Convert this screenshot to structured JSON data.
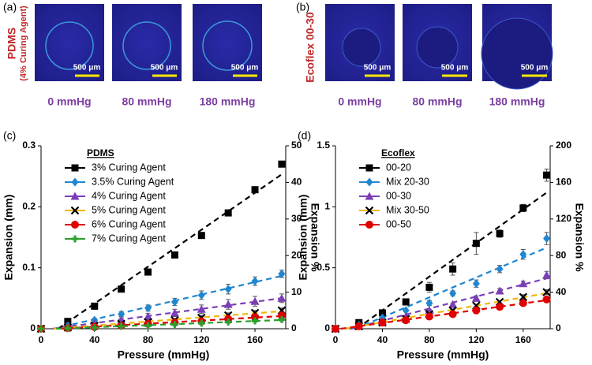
{
  "panel_a": {
    "label": "(a)",
    "sample": "PDMS",
    "sample_note": "(4% Curing Agent)",
    "scale_bar": "500 μm",
    "pressures": [
      "0 mmHg",
      "80 mmHg",
      "180 mmHg"
    ]
  },
  "panel_b": {
    "label": "(b)",
    "sample": "Ecoflex 00-30",
    "scale_bar": "500 μm",
    "pressures": [
      "0 mmHg",
      "80 mmHg",
      "180 mmHg"
    ]
  },
  "chart_data": [
    {
      "type": "scatter",
      "label": "(c)",
      "legend_title": "PDMS",
      "x_label": "Pressure (mmHg)",
      "y_label": "Expansion (mm)",
      "y2_label": "Expansion %",
      "x": [
        0,
        20,
        40,
        60,
        80,
        100,
        120,
        140,
        160,
        180
      ],
      "xlim": [
        0,
        183
      ],
      "xticks": [
        0,
        40,
        80,
        120,
        160
      ],
      "ylim": [
        0,
        0.3
      ],
      "yticks": [
        0,
        0.1,
        0.2,
        0.3
      ],
      "y2lim": [
        0,
        50
      ],
      "y2ticks": [
        0,
        10,
        20,
        30,
        40,
        50
      ],
      "fit_lines": true,
      "series": [
        {
          "name": "3% Curing Agent",
          "color": "#000000",
          "marker": "square",
          "values": [
            0,
            0.012,
            0.037,
            0.065,
            0.093,
            0.121,
            0.153,
            0.19,
            0.228,
            0.27
          ],
          "errors": [
            0,
            0.002,
            0.003,
            0.004,
            0.005,
            0.003,
            0.003,
            0.003,
            0.002,
            0.003
          ]
        },
        {
          "name": "3.5% Curing Agent",
          "color": "#1f86d0",
          "marker": "diamond",
          "values": [
            0,
            0.005,
            0.014,
            0.024,
            0.034,
            0.044,
            0.055,
            0.065,
            0.078,
            0.09
          ],
          "errors": [
            0,
            0.002,
            0.003,
            0.004,
            0.005,
            0.006,
            0.007,
            0.008,
            0.007,
            0.006
          ]
        },
        {
          "name": "4% Curing Agent",
          "color": "#7b3fb5",
          "marker": "triangle",
          "values": [
            0,
            0.003,
            0.008,
            0.014,
            0.02,
            0.026,
            0.032,
            0.04,
            0.045,
            0.05
          ],
          "errors": [
            0,
            0.002,
            0.003,
            0.004,
            0.005,
            0.006,
            0.007,
            0.008,
            0.008,
            0.007
          ]
        },
        {
          "name": "5% Curing Agent",
          "color": "#f0b800",
          "marker": "x",
          "values": [
            0,
            0.002,
            0.005,
            0.008,
            0.011,
            0.014,
            0.018,
            0.022,
            0.026,
            0.03
          ],
          "errors": [
            0,
            0.001,
            0.002,
            0.002,
            0.003,
            0.003,
            0.004,
            0.004,
            0.004,
            0.004
          ]
        },
        {
          "name": "6% Curing Agent",
          "color": "#e00000",
          "marker": "circle",
          "values": [
            0,
            0.001,
            0.003,
            0.005,
            0.008,
            0.01,
            0.012,
            0.016,
            0.019,
            0.022
          ],
          "errors": [
            0,
            0.001,
            0.001,
            0.002,
            0.002,
            0.002,
            0.003,
            0.003,
            0.003,
            0.003
          ]
        },
        {
          "name": "7% Curing Agent",
          "color": "#2ca02c",
          "marker": "plus",
          "values": [
            0,
            0.001,
            0.002,
            0.004,
            0.005,
            0.007,
            0.009,
            0.011,
            0.013,
            0.015
          ],
          "errors": [
            0,
            0.001,
            0.001,
            0.001,
            0.002,
            0.002,
            0.002,
            0.002,
            0.002,
            0.002
          ]
        }
      ]
    },
    {
      "type": "scatter",
      "label": "(d)",
      "legend_title": "Ecoflex",
      "x_label": "Pressure (mmHg)",
      "y_label": "Expansion (mm)",
      "y2_label": "Expansion %",
      "x": [
        0,
        20,
        40,
        60,
        80,
        100,
        120,
        140,
        160,
        180
      ],
      "xlim": [
        0,
        183
      ],
      "xticks": [
        0,
        40,
        80,
        120,
        160
      ],
      "ylim": [
        0,
        1.5
      ],
      "yticks": [
        0,
        0.5,
        1,
        1.5
      ],
      "y2lim": [
        0,
        200
      ],
      "y2ticks": [
        0,
        40,
        80,
        120,
        160,
        200
      ],
      "fit_lines": true,
      "series": [
        {
          "name": "00-20",
          "color": "#000000",
          "marker": "square",
          "values": [
            0,
            0.05,
            0.13,
            0.22,
            0.34,
            0.49,
            0.7,
            0.78,
            0.99,
            1.26
          ],
          "errors": [
            0,
            0.01,
            0.02,
            0.02,
            0.04,
            0.05,
            0.09,
            0.03,
            0.03,
            0.05
          ]
        },
        {
          "name": "Mix 20-30",
          "color": "#1f86d0",
          "marker": "diamond",
          "values": [
            0,
            0.03,
            0.09,
            0.15,
            0.21,
            0.29,
            0.37,
            0.49,
            0.61,
            0.74
          ],
          "errors": [
            0,
            0.01,
            0.01,
            0.01,
            0.02,
            0.02,
            0.03,
            0.03,
            0.04,
            0.05
          ]
        },
        {
          "name": "00-30",
          "color": "#7b3fb5",
          "marker": "triangle",
          "values": [
            0,
            0.02,
            0.06,
            0.1,
            0.15,
            0.2,
            0.25,
            0.31,
            0.37,
            0.44
          ],
          "errors": [
            0,
            0.01,
            0.01,
            0.01,
            0.01,
            0.01,
            0.02,
            0.02,
            0.02,
            0.03
          ]
        },
        {
          "name": "Mix 30-50",
          "color": "#f0b800",
          "marker": "x",
          "values": [
            0,
            0.02,
            0.05,
            0.08,
            0.12,
            0.15,
            0.19,
            0.22,
            0.26,
            0.3
          ],
          "errors": [
            0,
            0.01,
            0.01,
            0.01,
            0.01,
            0.01,
            0.01,
            0.01,
            0.02,
            0.02
          ]
        },
        {
          "name": "00-50",
          "color": "#e00000",
          "marker": "circle",
          "values": [
            0,
            0.02,
            0.05,
            0.07,
            0.1,
            0.12,
            0.15,
            0.18,
            0.21,
            0.24
          ],
          "errors": [
            0,
            0.01,
            0.01,
            0.01,
            0.01,
            0.01,
            0.01,
            0.01,
            0.01,
            0.01
          ]
        }
      ]
    }
  ]
}
